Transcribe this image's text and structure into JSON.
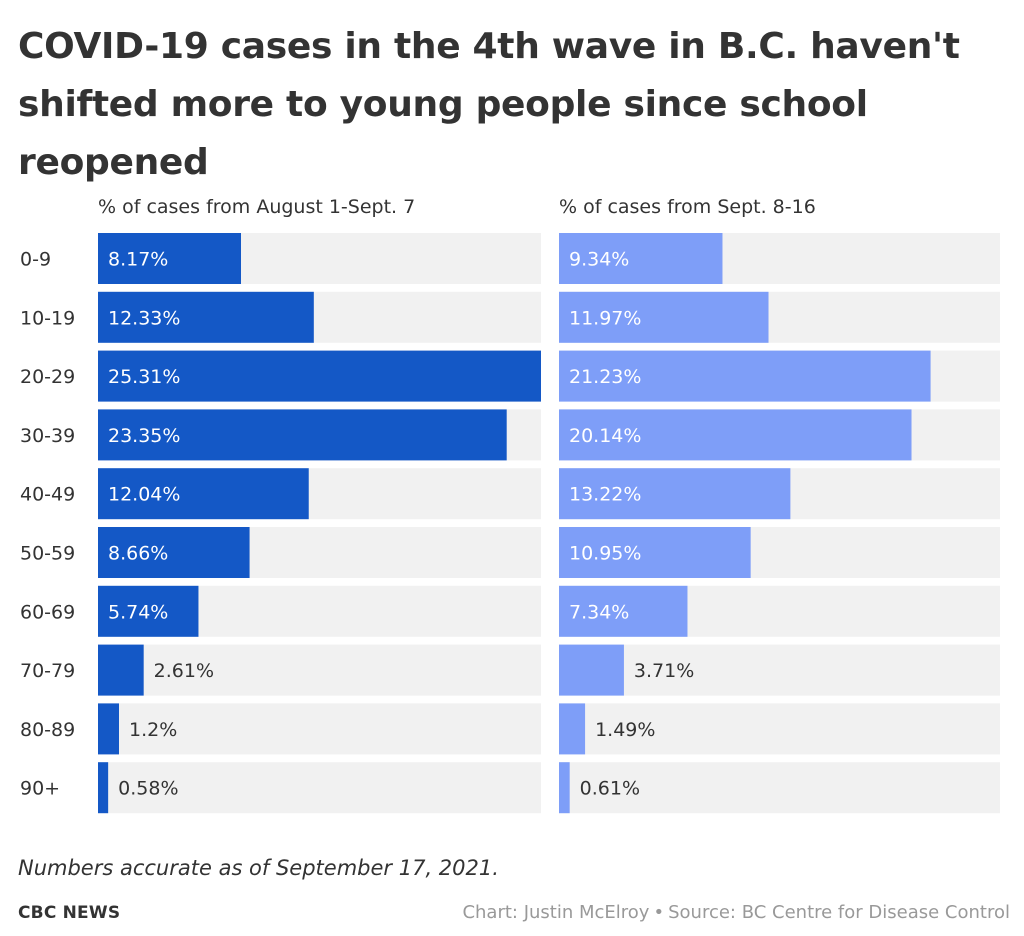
{
  "title": "COVID-19 cases in the 4th wave in B.C. haven't shifted more to young people since school reopened",
  "panels": [
    {
      "heading": "% of cases from August 1-Sept. 7"
    },
    {
      "heading": "% of cases from Sept. 8-16"
    }
  ],
  "note": "Numbers accurate as of September 17, 2021.",
  "brand": "CBC NEWS",
  "credit": {
    "chart_by": "Chart: Justin McElroy",
    "separator": "•",
    "source": "Source: BC Centre for Disease Control"
  },
  "colors": {
    "series1": "#1458c6",
    "series2": "#7e9ef8",
    "track": "#f1f1f1",
    "label_inside": "#ffffff",
    "label_outside": "#333333"
  },
  "chart_data": {
    "type": "bar",
    "orientation": "horizontal",
    "categories": [
      "0-9",
      "10-19",
      "20-29",
      "30-39",
      "40-49",
      "50-59",
      "60-69",
      "70-79",
      "80-89",
      "90+"
    ],
    "series": [
      {
        "name": "% of cases from August 1-Sept. 7",
        "values": [
          8.17,
          12.33,
          25.31,
          23.35,
          12.04,
          8.66,
          5.74,
          2.61,
          1.2,
          0.58
        ],
        "labels": [
          "8.17%",
          "12.33%",
          "25.31%",
          "23.35%",
          "12.04%",
          "8.66%",
          "5.74%",
          "2.61%",
          "1.2%",
          "0.58%"
        ]
      },
      {
        "name": "% of cases from Sept. 8-16",
        "values": [
          9.34,
          11.97,
          21.23,
          20.14,
          13.22,
          10.95,
          7.34,
          3.71,
          1.49,
          0.61
        ],
        "labels": [
          "9.34%",
          "11.97%",
          "21.23%",
          "20.14%",
          "13.22%",
          "10.95%",
          "7.34%",
          "3.71%",
          "1.49%",
          "0.61%"
        ]
      }
    ],
    "xlim": [
      0,
      25.31
    ],
    "grid": false,
    "legend": "none"
  }
}
